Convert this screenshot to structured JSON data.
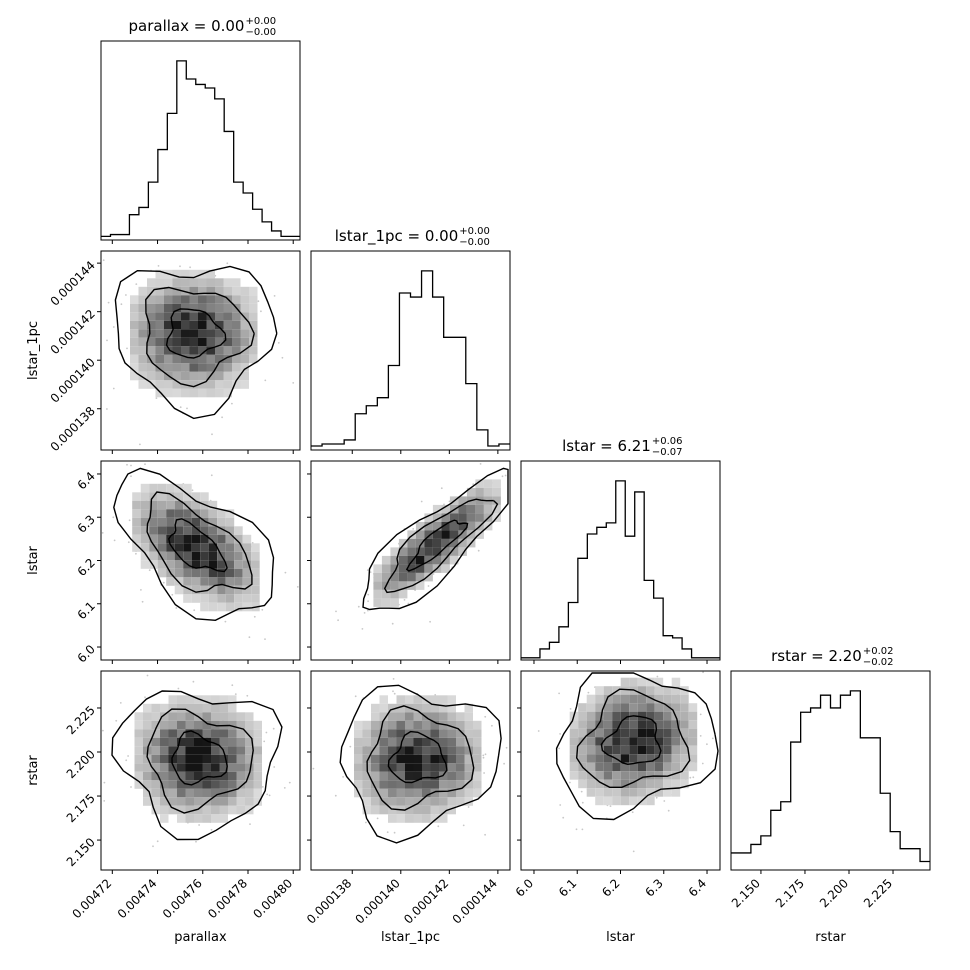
{
  "chart_data": {
    "type": "corner",
    "parameters": [
      "parallax",
      "lstar_1pc",
      "lstar",
      "rstar"
    ],
    "axis_labels": [
      "parallax",
      "lstar_1pc",
      "lstar",
      "rstar"
    ],
    "titles": [
      {
        "param": "parallax",
        "text": "parallax = 0.00",
        "median": "0.00",
        "plus": "+0.00",
        "minus": "−0.00"
      },
      {
        "param": "lstar_1pc",
        "text": "lstar_1pc = 0.00",
        "median": "0.00",
        "plus": "+0.00",
        "minus": "−0.00"
      },
      {
        "param": "lstar",
        "text": "lstar = 6.21",
        "median": "6.21",
        "plus": "+0.06",
        "minus": "−0.07"
      },
      {
        "param": "rstar",
        "text": "rstar = 2.20",
        "median": "2.20",
        "plus": "+0.02",
        "minus": "−0.02"
      }
    ],
    "ranges": [
      [
        0.004715,
        0.004803
      ],
      [
        0.0001363,
        0.0001445
      ],
      [
        5.97,
        6.43
      ],
      [
        2.133,
        2.246
      ]
    ],
    "ticks": [
      [
        0.00472,
        0.00474,
        0.00476,
        0.00478,
        0.0048
      ],
      [
        0.000138,
        0.00014,
        0.000142,
        0.000144
      ],
      [
        6.0,
        6.1,
        6.2,
        6.3,
        6.4
      ],
      [
        2.15,
        2.175,
        2.2,
        2.225
      ]
    ],
    "tick_labels": [
      [
        "0.00472",
        "0.00474",
        "0.00476",
        "0.00478",
        "0.00480"
      ],
      [
        "0.000138",
        "0.000140",
        "0.000142",
        "0.000144"
      ],
      [
        "6.0",
        "6.1",
        "6.2",
        "6.3",
        "6.4"
      ],
      [
        "2.150",
        "2.175",
        "2.200",
        "2.225"
      ]
    ],
    "y_tick_labels_lstar": [
      "6.0",
      "6.1",
      "6.2",
      "6.3",
      "6.4"
    ],
    "histograms": [
      {
        "param": "parallax",
        "counts": [
          2,
          3,
          3,
          14,
          18,
          32,
          50,
          70,
          99,
          89,
          86,
          84,
          78,
          60,
          32,
          26,
          17,
          10,
          5,
          2,
          2
        ]
      },
      {
        "param": "lstar_1pc",
        "counts": [
          2,
          3,
          3,
          5,
          18,
          22,
          26,
          42,
          78,
          76,
          89,
          76,
          56,
          56,
          33,
          10,
          2,
          3
        ]
      },
      {
        "param": "lstar",
        "counts": [
          1,
          1,
          5,
          8,
          15,
          26,
          46,
          57,
          60,
          62,
          81,
          56,
          76,
          36,
          28,
          11,
          10,
          5,
          1,
          1,
          1
        ]
      },
      {
        "param": "rstar",
        "counts": [
          4,
          4,
          6,
          8,
          14,
          16,
          30,
          37,
          38,
          41,
          38,
          41,
          42,
          31,
          31,
          18,
          9,
          5,
          5,
          2
        ]
      }
    ],
    "panels_2d": [
      {
        "x": "parallax",
        "y": "lstar_1pc",
        "peak": [
          0.004756,
          0.0001411
        ]
      },
      {
        "x": "parallax",
        "y": "lstar",
        "peak": [
          0.004757,
          6.23
        ]
      },
      {
        "x": "lstar_1pc",
        "y": "lstar",
        "peak": [
          0.0001415,
          6.24
        ]
      },
      {
        "x": "parallax",
        "y": "rstar",
        "peak": [
          0.004758,
          2.196
        ]
      },
      {
        "x": "lstar_1pc",
        "y": "rstar",
        "peak": [
          0.0001407,
          2.196
        ]
      },
      {
        "x": "lstar",
        "y": "rstar",
        "peak": [
          6.23,
          2.206
        ]
      }
    ],
    "colors": {
      "line": "#000000",
      "background": "#ffffff"
    }
  }
}
